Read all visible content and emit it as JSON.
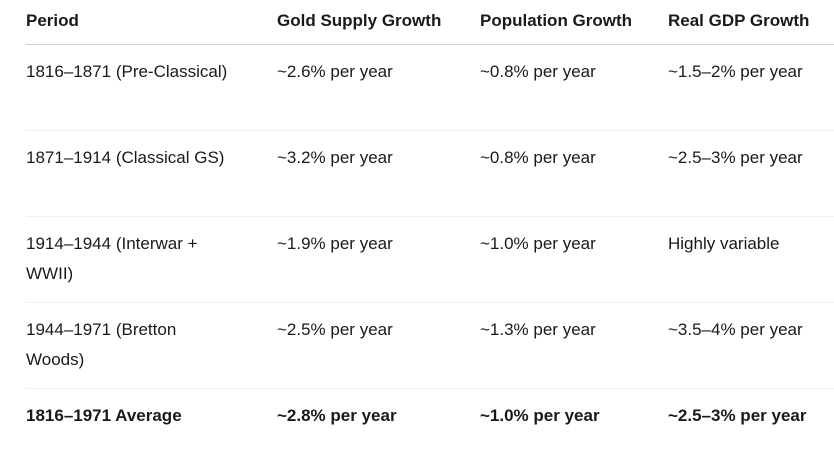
{
  "table": {
    "columns": [
      {
        "key": "period",
        "label": "Period"
      },
      {
        "key": "gold",
        "label": "Gold Supply Growth"
      },
      {
        "key": "population",
        "label": "Population Growth"
      },
      {
        "key": "gdp",
        "label": "Real GDP Growth"
      }
    ],
    "rows": [
      {
        "period": "1816–1871 (Pre-Classical)",
        "gold": "~2.6% per year",
        "population": "~0.8% per year",
        "gdp": "~1.5–2% per year"
      },
      {
        "period": "1871–1914 (Classical GS)",
        "gold": "~3.2% per year",
        "population": "~0.8% per year",
        "gdp": "~2.5–3% per year"
      },
      {
        "period": "1914–1944 (Interwar +\nWWII)",
        "gold": "~1.9% per year",
        "population": "~1.0% per year",
        "gdp": "Highly variable"
      },
      {
        "period": "1944–1971 (Bretton\nWoods)",
        "gold": "~2.5% per year",
        "population": "~1.3% per year",
        "gdp": "~3.5–4% per year"
      },
      {
        "period": "1816–1971 Average",
        "gold": "~2.8% per year",
        "population": "~1.0% per year",
        "gdp": "~2.5–3% per year"
      }
    ]
  },
  "colors": {
    "text": "#1a1a1a",
    "header_border": "#cfcfcf",
    "row_border": "#f0f0f0",
    "background": "#ffffff"
  }
}
